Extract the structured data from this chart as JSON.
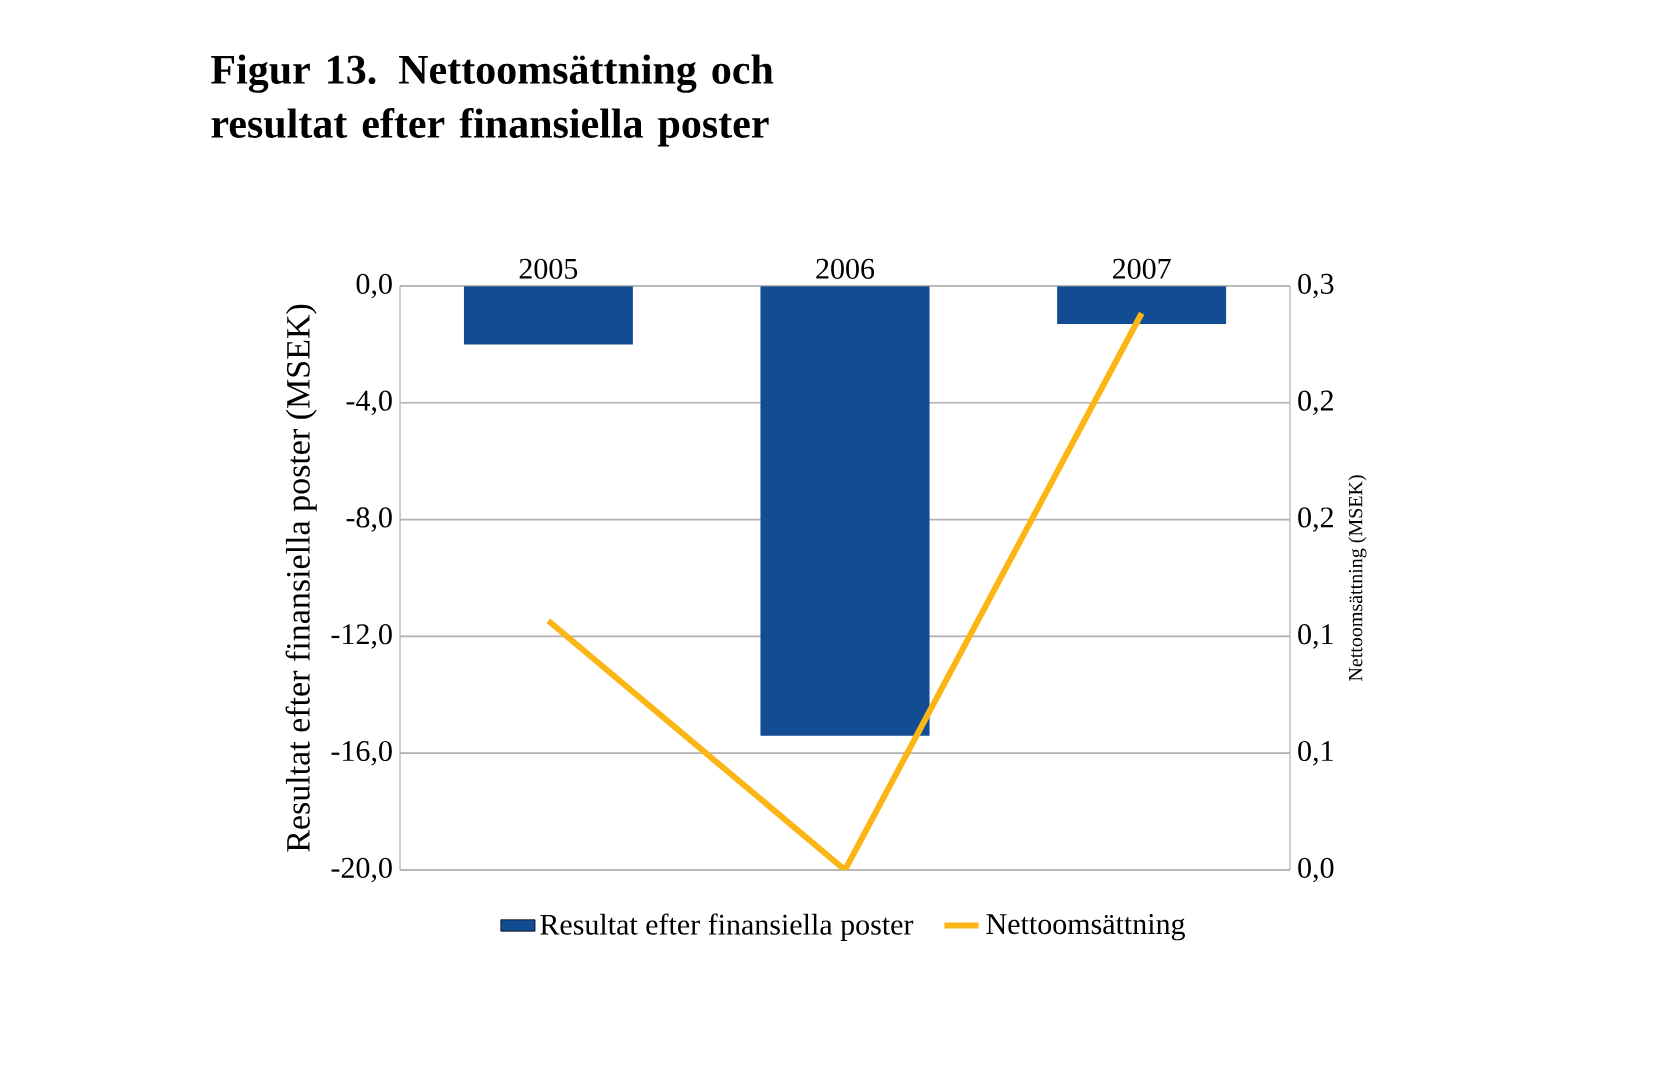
{
  "chart_data": {
    "type": "bar",
    "title": "Figur 13. Nettoomsättning och resultat efter finansiella poster",
    "ylabel": "Resultat efter finansiella  poster (MSEK)",
    "y2label": "Nettoomsättning (MSEK)",
    "categories": [
      "2005",
      "2006",
      "2007"
    ],
    "series": [
      {
        "name": "Resultat efter finansiella poster",
        "color": "#124d93",
        "values": [
          -2.0,
          -15.4,
          -1.3
        ]
      },
      {
        "name": "Nettoomsättning",
        "type": "line",
        "axis": "y2",
        "color": "#fbb616",
        "values": [
          0.128,
          0.0,
          0.286
        ]
      }
    ],
    "ylim": [
      -20,
      0
    ],
    "yticks": [
      {
        "value": -20,
        "label": "-20,0"
      },
      {
        "value": -16,
        "label": "-16,0"
      },
      {
        "value": -12,
        "label": "-12,0"
      },
      {
        "value": -8,
        "label": "-8,0"
      },
      {
        "value": -4,
        "label": "-4,0"
      },
      {
        "value": 0,
        "label": "0,0"
      }
    ],
    "y2lim": [
      0,
      0.3
    ],
    "y2ticks": [
      {
        "value": 0,
        "label": "0,0"
      },
      {
        "value": 0.06,
        "label": "0,1"
      },
      {
        "value": 0.12,
        "label": "0,1"
      },
      {
        "value": 0.18,
        "label": "0,2"
      },
      {
        "value": 0.24,
        "label": "0,2"
      },
      {
        "value": 0.3,
        "label": "0,3"
      }
    ],
    "grid": "y",
    "legend": "bottom"
  }
}
